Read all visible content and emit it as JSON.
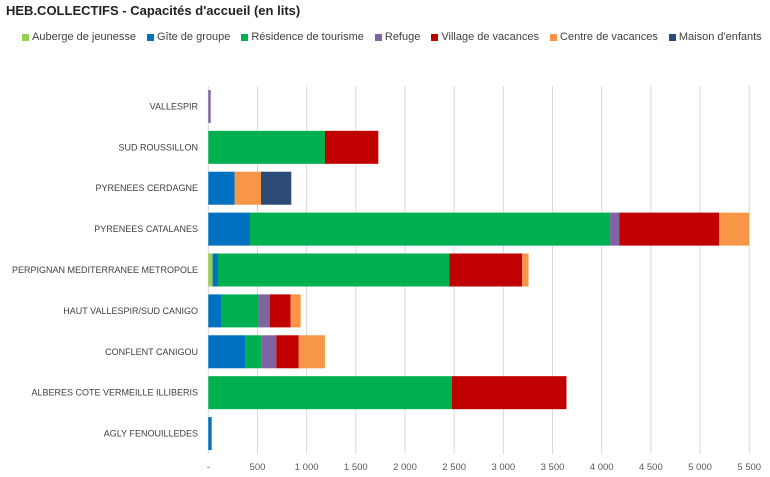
{
  "chart_data": {
    "type": "bar",
    "orientation": "horizontal",
    "stacked": true,
    "title": "HEB.COLLECTIFS - Capacités d'accueil (en lits)",
    "categories": [
      "VALLESPIR",
      "SUD ROUSSILLON",
      "PYRENEES CERDAGNE",
      "PYRENEES CATALANES",
      "PERPIGNAN MEDITERRANEE METROPOLE",
      "HAUT VALLESPIR/SUD CANIGO",
      "CONFLENT CANIGOU",
      "ALBERES COTE VERMEILLE ILLIBERIS",
      "AGLY FENOUILLEDES"
    ],
    "series": [
      {
        "name": "Auberge de jeunesse",
        "color": "#92D050",
        "values": [
          0,
          0,
          0,
          0,
          44,
          0,
          0,
          0,
          0
        ]
      },
      {
        "name": "Gîte de groupe",
        "color": "#0070C0",
        "values": [
          0,
          0,
          268,
          424,
          54,
          129,
          380,
          0,
          34
        ]
      },
      {
        "name": "Résidence de tourisme",
        "color": "#00B050",
        "values": [
          0,
          1186,
          0,
          3662,
          2355,
          383,
          162,
          2476,
          0
        ]
      },
      {
        "name": "Refuge",
        "color": "#8064A2",
        "values": [
          24,
          0,
          0,
          92,
          0,
          112,
          150,
          0,
          0
        ]
      },
      {
        "name": "Village de vacances",
        "color": "#C00000",
        "values": [
          0,
          543,
          0,
          1017,
          739,
          213,
          227,
          1166,
          0
        ]
      },
      {
        "name": "Centre de vacances",
        "color": "#F79646",
        "values": [
          0,
          0,
          268,
          305,
          64,
          102,
          267,
          0,
          0
        ]
      },
      {
        "name": "Maison d'enfants",
        "color": "#2C4A78",
        "values": [
          0,
          0,
          308,
          0,
          0,
          0,
          0,
          0,
          0
        ]
      }
    ],
    "xlim": [
      0,
      5500
    ],
    "xticks": [
      0,
      500,
      1000,
      1500,
      2000,
      2500,
      3000,
      3500,
      4000,
      4500,
      5000,
      5500
    ],
    "xtick_labels": [
      "-",
      "500",
      "1 000",
      "1 500",
      "2 000",
      "2 500",
      "3 000",
      "3 500",
      "4 000",
      "4 500",
      "5 000",
      "5 500"
    ],
    "grid": true,
    "legend_position": "top"
  }
}
